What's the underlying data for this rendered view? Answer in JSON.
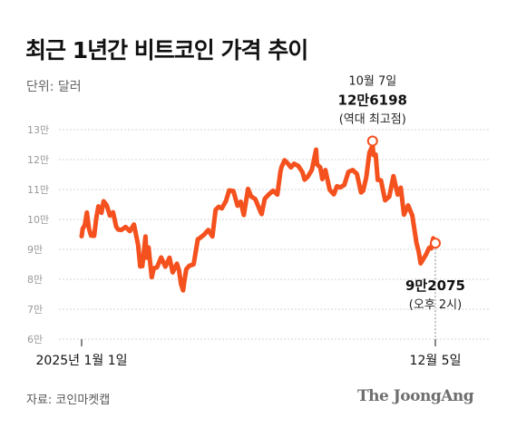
{
  "header": {
    "title": "최근 1년간 비트코인 가격 추이",
    "unit": "단위: 달러"
  },
  "footer": {
    "source": "자료: 코인마켓캡",
    "brand": "The JoongAng"
  },
  "colors": {
    "line": "#f4511e",
    "grid": "#d6d6d6",
    "tick": "#999999",
    "marker_fill": "#ffffff"
  },
  "chart_data": {
    "type": "line",
    "title": "최근 1년간 비트코인 가격 추이",
    "ylabel": "단위: 달러",
    "y_tick_labels": [
      "6만",
      "7만",
      "8만",
      "9만",
      "10만",
      "11만",
      "12만",
      "13만"
    ],
    "y_tick_values": [
      60000,
      70000,
      80000,
      90000,
      100000,
      110000,
      120000,
      130000
    ],
    "ylim": [
      60000,
      130000
    ],
    "x_tick_labels": [
      "2025년 1월 1일",
      "12월 5일"
    ],
    "x_tick_dates": [
      "2025-01-01",
      "2025-12-05"
    ],
    "grid": true,
    "series": [
      {
        "x": [
          "2025-01-01",
          "2025-01-02",
          "2025-01-04",
          "2025-01-06",
          "2025-01-08",
          "2025-01-10",
          "2025-01-13",
          "2025-01-15",
          "2025-01-17",
          "2025-01-20",
          "2025-01-22",
          "2025-01-25",
          "2025-01-28",
          "2025-01-31",
          "2025-02-03",
          "2025-02-05",
          "2025-02-08",
          "2025-02-12",
          "2025-02-16",
          "2025-02-20",
          "2025-02-24",
          "2025-02-26",
          "2025-02-28",
          "2025-03-03",
          "2025-03-04",
          "2025-03-06",
          "2025-03-09",
          "2025-03-11",
          "2025-03-14",
          "2025-03-18",
          "2025-03-22",
          "2025-03-26",
          "2025-03-29",
          "2025-04-02",
          "2025-04-04",
          "2025-04-06",
          "2025-04-08",
          "2025-04-09",
          "2025-04-11",
          "2025-04-14",
          "2025-04-18",
          "2025-04-22",
          "2025-04-24",
          "2025-04-28",
          "2025-05-02",
          "2025-05-06",
          "2025-05-09",
          "2025-05-12",
          "2025-05-15",
          "2025-05-19",
          "2025-05-22",
          "2025-05-26",
          "2025-05-30",
          "2025-06-02",
          "2025-06-05",
          "2025-06-09",
          "2025-06-12",
          "2025-06-16",
          "2025-06-20",
          "2025-06-22",
          "2025-06-25",
          "2025-06-29",
          "2025-07-03",
          "2025-07-07",
          "2025-07-10",
          "2025-07-11",
          "2025-07-14",
          "2025-07-17",
          "2025-07-20",
          "2025-07-23",
          "2025-07-27",
          "2025-07-31",
          "2025-08-02",
          "2025-08-05",
          "2025-08-09",
          "2025-08-13",
          "2025-08-14",
          "2025-08-17",
          "2025-08-19",
          "2025-08-22",
          "2025-08-26",
          "2025-08-30",
          "2025-09-02",
          "2025-09-05",
          "2025-09-09",
          "2025-09-13",
          "2025-09-17",
          "2025-09-21",
          "2025-09-25",
          "2025-09-27",
          "2025-09-30",
          "2025-10-03",
          "2025-10-06",
          "2025-10-07",
          "2025-10-09",
          "2025-10-11",
          "2025-10-14",
          "2025-10-18",
          "2025-10-22",
          "2025-10-26",
          "2025-10-30",
          "2025-11-02",
          "2025-11-05",
          "2025-11-09",
          "2025-11-13",
          "2025-11-17",
          "2025-11-19",
          "2025-11-21",
          "2025-11-23",
          "2025-11-26",
          "2025-11-29",
          "2025-12-01",
          "2025-12-03",
          "2025-12-05"
        ],
        "values": [
          94400,
          96900,
          98100,
          102300,
          96900,
          94600,
          94500,
          100500,
          104400,
          102200,
          106100,
          104700,
          101300,
          102400,
          97600,
          96600,
          96500,
          97500,
          96100,
          98300,
          91400,
          84300,
          84400,
          94300,
          87200,
          90600,
          80700,
          83700,
          84000,
          87300,
          84200,
          87200,
          82300,
          85200,
          83100,
          78400,
          76300,
          79100,
          83400,
          84500,
          85000,
          93400,
          93800,
          94900,
          96500,
          94300,
          103200,
          104200,
          103700,
          106200,
          109700,
          109500,
          104600,
          105900,
          101500,
          110200,
          107700,
          106800,
          103300,
          101800,
          106900,
          108400,
          109600,
          108300,
          116000,
          117500,
          119800,
          118700,
          117400,
          118600,
          117900,
          115800,
          113300,
          114200,
          116500,
          123300,
          118400,
          117400,
          113500,
          116500,
          109900,
          108400,
          111100,
          110700,
          111500,
          115900,
          116500,
          115200,
          109000,
          109600,
          114000,
          122300,
          124700,
          121500,
          121700,
          113200,
          113100,
          106400,
          107600,
          114500,
          108300,
          110600,
          101600,
          104700,
          101300,
          92100,
          89500,
          85300,
          86500,
          88200,
          90500,
          90300,
          93700,
          92075
        ]
      }
    ],
    "annotations": [
      {
        "date": "2025-10-06",
        "value": 126198,
        "date_label": "10월 7일",
        "value_label": "12만6198",
        "note": "(역대 최고점)"
      },
      {
        "date": "2025-12-05",
        "value": 92075,
        "value_label": "9만2075",
        "note": "(오후 2시)"
      }
    ]
  }
}
